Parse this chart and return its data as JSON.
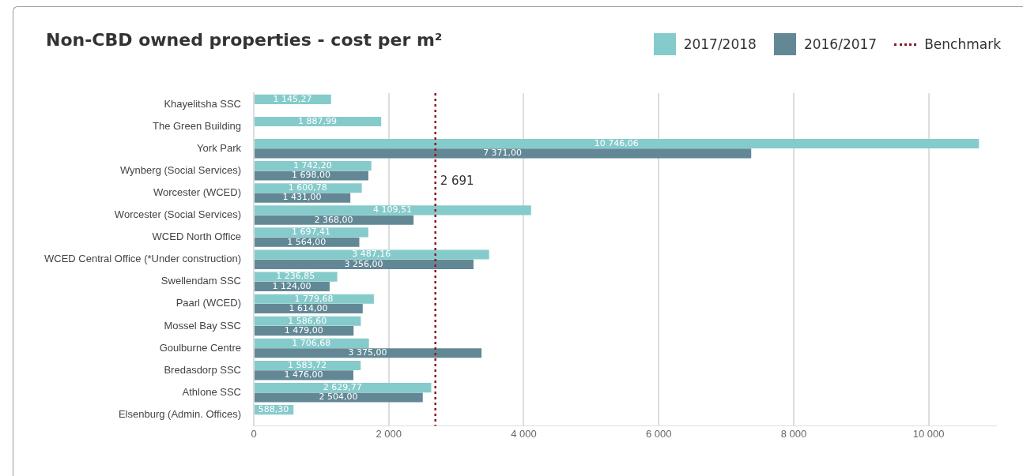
{
  "chart_data": {
    "type": "bar",
    "orientation": "horizontal",
    "title": "Non-CBD owned properties - cost per m²",
    "categories": [
      "Khayelitsha SSC",
      "The Green Building",
      "York Park",
      "Wynberg (Social Services)",
      "Worcester (WCED)",
      "Worcester (Social Services)",
      "WCED North Office",
      "WCED Central Office (*Under construction)",
      "Swellendam SSC",
      "Paarl (WCED)",
      "Mossel Bay SSC",
      "Goulburne Centre",
      "Bredasdorp SSC",
      "Athlone SSC",
      "Elsenburg (Admin. Offices)"
    ],
    "series": [
      {
        "name": "2017/2018",
        "color": "#86cbcb",
        "values": [
          1145.27,
          1887.99,
          10746.06,
          1742.2,
          1600.78,
          4109.51,
          1697.41,
          3487.16,
          1236.85,
          1779.68,
          1586.6,
          1706.68,
          1583.72,
          2629.77,
          588.3
        ],
        "value_labels": [
          "1 145,27",
          "1 887,99",
          "10 746,06",
          "1 742,20",
          "1 600,78",
          "4 109,51",
          "1 697,41",
          "3 487,16",
          "1 236,85",
          "1 779,68",
          "1 586,60",
          "1 706,68",
          "1 583,72",
          "2 629,77",
          "588,30"
        ]
      },
      {
        "name": "2016/2017",
        "color": "#638895",
        "values": [
          null,
          null,
          7371,
          1698,
          1431,
          2368,
          1564,
          3256,
          1124,
          1614,
          1479,
          3375,
          1476,
          2504,
          null
        ],
        "value_labels": [
          null,
          null,
          "7 371,00",
          "1 698,00",
          "1 431,00",
          "2 368,00",
          "1 564,00",
          "3 256,00",
          "1 124,00",
          "1 614,00",
          "1 479,00",
          "3 375,00",
          "1 476,00",
          "2 504,00",
          null
        ]
      }
    ],
    "xlim": [
      0,
      11000
    ],
    "xticks": [
      0,
      {
        "value": 2000,
        "label": "2 000"
      },
      {
        "value": 4000,
        "label": "4 000"
      },
      {
        "value": 6000,
        "label": "6 000"
      },
      {
        "value": 8000,
        "label": "8 000"
      },
      {
        "value": 10000,
        "label": "10 000"
      }
    ],
    "grid": "x",
    "legend": "top right",
    "ref_lines": [
      {
        "axis": "x",
        "value": 2691,
        "label": "Benchmark",
        "color": "#8b1a1a",
        "line_style": "dotted"
      }
    ],
    "annotations": [
      {
        "text": "2 691",
        "x": 2691,
        "y": "Worcester (WCED)"
      }
    ]
  }
}
